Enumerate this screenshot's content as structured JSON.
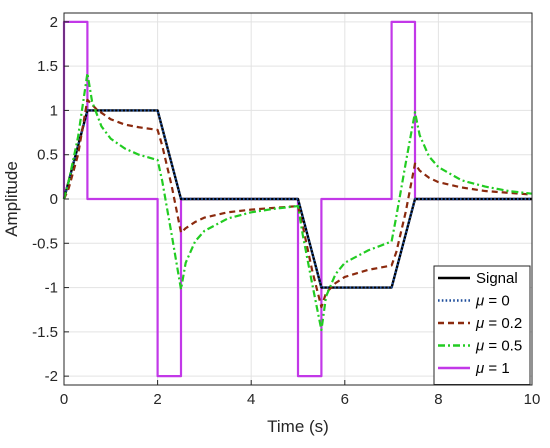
{
  "chart_data": {
    "type": "line",
    "title": "",
    "xlabel": "Time (s)",
    "ylabel": "Amplitude",
    "xlim": [
      0,
      10
    ],
    "ylim": [
      -2.1,
      2.1
    ],
    "x_ticks": [
      0,
      2,
      4,
      6,
      8,
      10
    ],
    "x_tick_labels": [
      "0",
      "2",
      "4",
      "6",
      "8",
      "10"
    ],
    "y_ticks": [
      -2,
      -1.5,
      -1,
      -0.5,
      0,
      0.5,
      1,
      1.5,
      2
    ],
    "y_tick_labels": [
      "-2",
      "-1.5",
      "-1",
      "-0.5",
      "0",
      "0.5",
      "1",
      "1.5",
      "2"
    ],
    "grid": true,
    "legend_position": "bottom-right",
    "series": [
      {
        "name": "Signal",
        "mu": "",
        "color": "#000000",
        "dash": "solid",
        "points": [
          [
            0,
            0
          ],
          [
            0.5,
            1
          ],
          [
            2,
            1
          ],
          [
            2.5,
            0
          ],
          [
            5,
            0
          ],
          [
            5.5,
            -1
          ],
          [
            7,
            -1
          ],
          [
            7.5,
            0
          ],
          [
            10,
            0
          ]
        ]
      },
      {
        "name": "μ = 0",
        "mu": "0",
        "color": "#1f4e9c",
        "dash": "dotted",
        "points": [
          [
            0,
            0
          ],
          [
            0.5,
            1
          ],
          [
            2,
            1
          ],
          [
            2.5,
            0
          ],
          [
            5,
            0
          ],
          [
            5.5,
            -1
          ],
          [
            7,
            -1
          ],
          [
            7.5,
            0
          ],
          [
            10,
            0
          ]
        ]
      },
      {
        "name": "μ = 0.2",
        "mu": "0.2",
        "color": "#8b2a0e",
        "dash": "dashed",
        "points": [
          [
            0,
            0
          ],
          [
            0.1,
            0.12
          ],
          [
            0.3,
            0.5
          ],
          [
            0.5,
            1.12
          ],
          [
            0.7,
            1.01
          ],
          [
            1,
            0.9
          ],
          [
            1.3,
            0.84
          ],
          [
            1.6,
            0.81
          ],
          [
            2,
            0.78
          ],
          [
            2.1,
            0.6
          ],
          [
            2.3,
            0.15
          ],
          [
            2.5,
            -0.38
          ],
          [
            2.6,
            -0.33
          ],
          [
            2.8,
            -0.26
          ],
          [
            3,
            -0.21
          ],
          [
            3.5,
            -0.15
          ],
          [
            4,
            -0.12
          ],
          [
            4.5,
            -0.1
          ],
          [
            5,
            -0.08
          ],
          [
            5.1,
            -0.3
          ],
          [
            5.3,
            -0.8
          ],
          [
            5.5,
            -1.22
          ],
          [
            5.6,
            -1.06
          ],
          [
            5.8,
            -0.95
          ],
          [
            6,
            -0.88
          ],
          [
            6.5,
            -0.8
          ],
          [
            7,
            -0.75
          ],
          [
            7.1,
            -0.6
          ],
          [
            7.3,
            -0.15
          ],
          [
            7.5,
            0.4
          ],
          [
            7.6,
            0.32
          ],
          [
            7.8,
            0.24
          ],
          [
            8,
            0.19
          ],
          [
            8.5,
            0.13
          ],
          [
            9,
            0.09
          ],
          [
            9.5,
            0.07
          ],
          [
            10,
            0.05
          ]
        ]
      },
      {
        "name": "μ = 0.5",
        "mu": "0.5",
        "color": "#22cc22",
        "dash": "dashdot",
        "points": [
          [
            0,
            0
          ],
          [
            0.1,
            0.2
          ],
          [
            0.3,
            0.7
          ],
          [
            0.5,
            1.42
          ],
          [
            0.6,
            1.1
          ],
          [
            0.8,
            0.82
          ],
          [
            1,
            0.68
          ],
          [
            1.3,
            0.57
          ],
          [
            1.6,
            0.5
          ],
          [
            2,
            0.44
          ],
          [
            2.1,
            0.2
          ],
          [
            2.3,
            -0.4
          ],
          [
            2.5,
            -1.02
          ],
          [
            2.6,
            -0.72
          ],
          [
            2.8,
            -0.48
          ],
          [
            3,
            -0.36
          ],
          [
            3.5,
            -0.22
          ],
          [
            4,
            -0.15
          ],
          [
            4.5,
            -0.11
          ],
          [
            5,
            -0.08
          ],
          [
            5.1,
            -0.4
          ],
          [
            5.3,
            -0.95
          ],
          [
            5.5,
            -1.48
          ],
          [
            5.6,
            -1.1
          ],
          [
            5.8,
            -0.85
          ],
          [
            6,
            -0.72
          ],
          [
            6.5,
            -0.58
          ],
          [
            7,
            -0.48
          ],
          [
            7.1,
            -0.2
          ],
          [
            7.3,
            0.4
          ],
          [
            7.5,
            0.98
          ],
          [
            7.6,
            0.72
          ],
          [
            7.8,
            0.48
          ],
          [
            8,
            0.36
          ],
          [
            8.5,
            0.21
          ],
          [
            9,
            0.14
          ],
          [
            9.5,
            0.09
          ],
          [
            10,
            0.06
          ]
        ]
      },
      {
        "name": "μ = 1",
        "mu": "1",
        "color": "#c238e8",
        "dash": "solid",
        "points": [
          [
            0,
            0
          ],
          [
            0,
            2
          ],
          [
            0.5,
            2
          ],
          [
            0.5,
            0
          ],
          [
            2,
            0
          ],
          [
            2,
            -2
          ],
          [
            2.5,
            -2
          ],
          [
            2.5,
            0
          ],
          [
            5,
            0
          ],
          [
            5,
            -2
          ],
          [
            5.5,
            -2
          ],
          [
            5.5,
            0
          ],
          [
            7,
            0
          ],
          [
            7,
            2
          ],
          [
            7.5,
            2
          ],
          [
            7.5,
            0
          ],
          [
            10,
            0
          ]
        ]
      }
    ]
  }
}
